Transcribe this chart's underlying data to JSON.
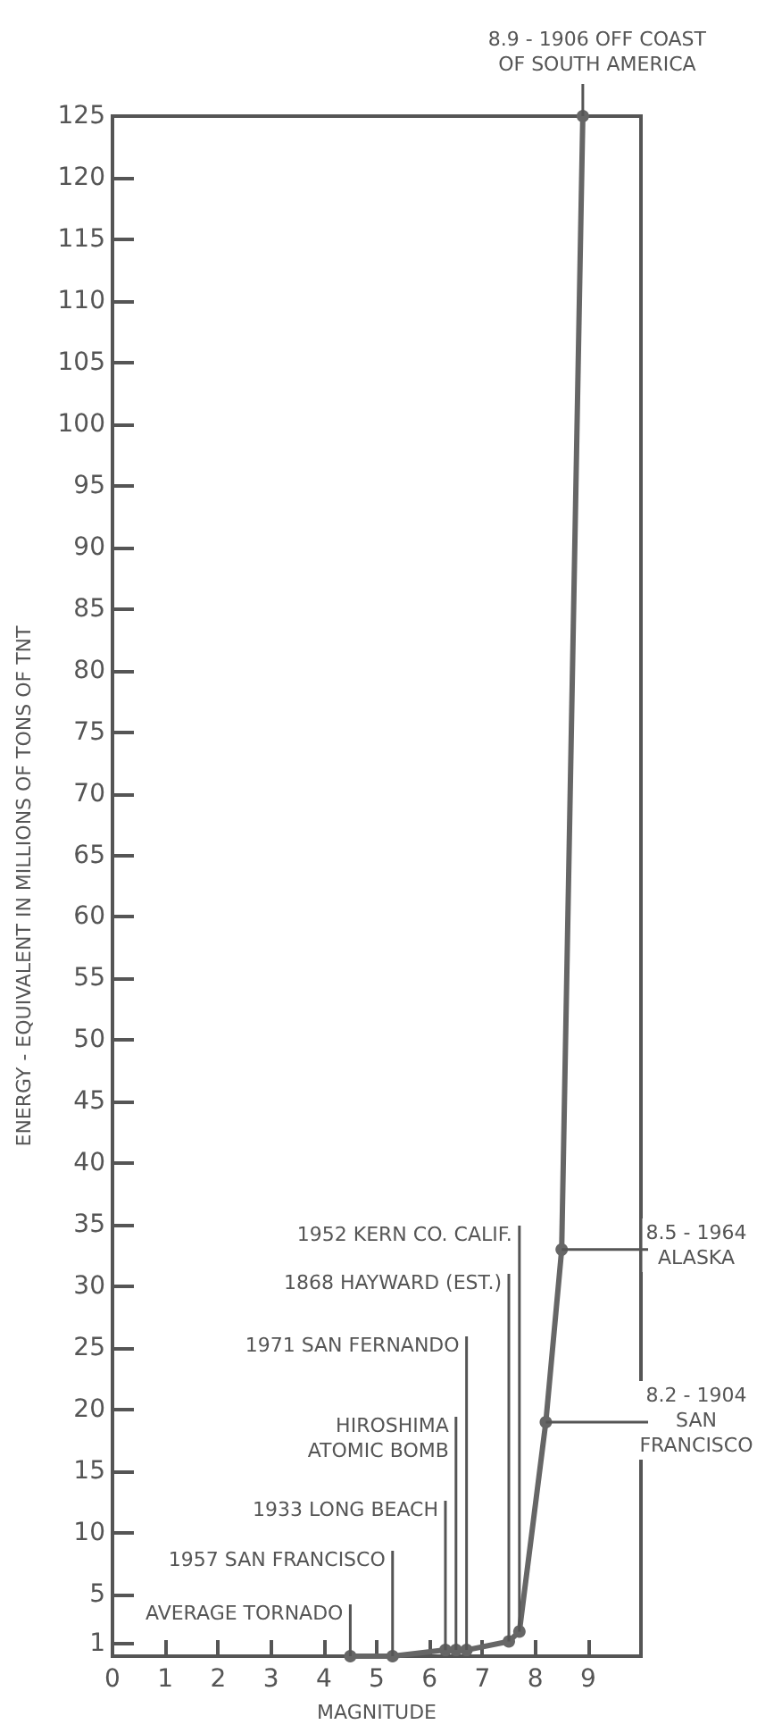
{
  "chart_data": {
    "type": "line",
    "xlabel": "MAGNITUDE",
    "ylabel": "ENERGY - EQUIVALENT IN MILLIONS OF TONS OF TNT",
    "x": [
      4.5,
      5.3,
      6.3,
      6.5,
      6.7,
      7.5,
      7.7,
      8.2,
      8.5,
      8.9
    ],
    "values": [
      0,
      0,
      0.5,
      0.5,
      0.5,
      1.2,
      2,
      19,
      33,
      125
    ],
    "color": "#666666",
    "marker": "circle",
    "line_style": "solid",
    "xlim": [
      0,
      10
    ],
    "xticks": [
      0,
      1,
      2,
      3,
      4,
      5,
      6,
      7,
      8,
      9
    ],
    "ylim": [
      0,
      125
    ],
    "yticks": [
      1,
      5,
      10,
      15,
      20,
      25,
      30,
      35,
      40,
      45,
      50,
      55,
      60,
      65,
      70,
      75,
      80,
      85,
      90,
      95,
      100,
      105,
      110,
      115,
      120,
      125
    ],
    "annotations": [
      {
        "text": "AVERAGE TORNADO",
        "x": 4.5,
        "y": 0
      },
      {
        "text": "1957 SAN FRANCISCO",
        "x": 5.3,
        "y": 0
      },
      {
        "text": "1933 LONG BEACH",
        "x": 6.3,
        "y": 0.5
      },
      {
        "text": "HIROSHIMA\nATOMIC BOMB",
        "x": 6.5,
        "y": 0.5
      },
      {
        "text": "1971 SAN FERNANDO",
        "x": 6.7,
        "y": 0.5
      },
      {
        "text": "1868 HAYWARD (EST.)",
        "x": 7.5,
        "y": 1.2
      },
      {
        "text": "1952 KERN CO. CALIF.",
        "x": 7.7,
        "y": 2
      },
      {
        "text": "8.2 - 1904\nSAN\nFRANCISCO",
        "x": 8.2,
        "y": 19
      },
      {
        "text": "8.5 - 1964\nALASKA",
        "x": 8.5,
        "y": 33
      },
      {
        "text": "8.9 - 1906 OFF COAST\nOF SOUTH AMERICA",
        "x": 8.9,
        "y": 125
      }
    ]
  }
}
